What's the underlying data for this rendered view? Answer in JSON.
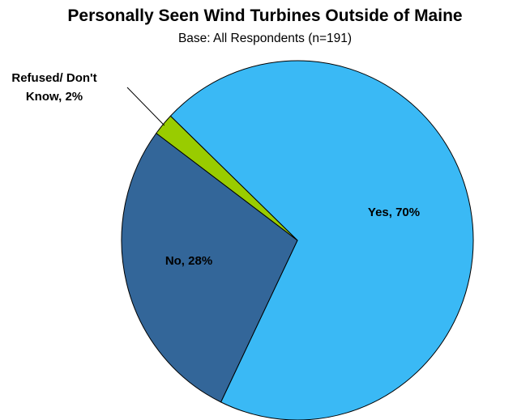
{
  "chart_data": {
    "type": "pie",
    "title": "Personally Seen Wind Turbines Outside of Maine",
    "subtitle": "Base: All Respondents (n=191)",
    "slices": [
      {
        "label": "Yes",
        "value": 70,
        "text": "Yes, 70%",
        "color": "#3AB9F5"
      },
      {
        "label": "No",
        "value": 28,
        "text": "No, 28%",
        "color": "#336699"
      },
      {
        "label": "Refused/ Don't Know",
        "value": 2,
        "text": [
          "Refused/ Don't",
          "Know, 2%"
        ],
        "color": "#99CC00"
      }
    ]
  }
}
